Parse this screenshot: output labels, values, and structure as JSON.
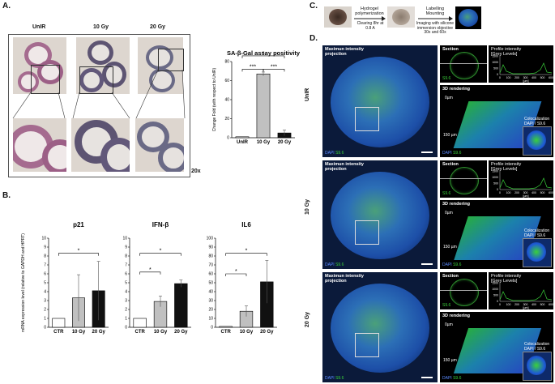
{
  "panels": {
    "A": {
      "letter": "A.",
      "labels": [
        "UnIR",
        "10 Gy",
        "20 Gy"
      ],
      "magnification": "20x"
    },
    "B": {
      "letter": "B."
    },
    "C": {
      "letter": "C.",
      "steps": [
        "Hydrogel polymerization",
        "Clearing 8hr at 0.8 A",
        "Labelling Mounting",
        "Imaging with silicone immersion objective 30x and 60x"
      ]
    },
    "D": {
      "letter": "D.",
      "rows": [
        "UnIR",
        "10 Gy",
        "20 Gy"
      ],
      "mip_title": "Maximun intensity projection",
      "section": "Section",
      "profile_title": "Profile intensity",
      "profile_unit": "[Grey Levels]",
      "profile_xunit": "[µm]",
      "rendering": "3D rendering",
      "coloc": "Colocalization DAPI / S9.6",
      "stain_dapi": "DAPI",
      "stain_s96": "S9.6",
      "depth0": "0µm",
      "depth150": "150 µm",
      "depth150b": "150µm"
    }
  },
  "colors": {
    "dapi": "#3d6fe0",
    "s96": "#3ad13a",
    "gray_bar": "#c0c0c0",
    "black_bar": "#111111"
  },
  "chart_data": [
    {
      "type": "bar",
      "title": "SA-β-Gal assay positivity",
      "ylabel": "Change Fold (with respect to UnIR)",
      "categories": [
        "UnIR",
        "10 Gy",
        "20 Gy"
      ],
      "values": [
        1,
        67,
        5
      ],
      "errors": [
        0,
        2,
        3
      ],
      "ylim": [
        0,
        80
      ],
      "yticks": [
        "0",
        "20",
        "40",
        "60",
        "80"
      ],
      "significance": [
        "***",
        "***",
        "*"
      ]
    },
    {
      "type": "bar",
      "title": "p21",
      "ylabel": "mRNA expression level (relative to GAPDH and HPRT)",
      "categories": [
        "CTR",
        "10 Gy",
        "20 Gy"
      ],
      "values": [
        1,
        3.3,
        4.1
      ],
      "errors": [
        0,
        2.6,
        3.3
      ],
      "ylim": [
        0,
        10
      ],
      "yticks": [
        "0",
        "1",
        "2",
        "3",
        "4",
        "5",
        "6",
        "7",
        "8",
        "9",
        "10"
      ],
      "significance": [
        "*"
      ]
    },
    {
      "type": "bar",
      "title": "IFN-β",
      "categories": [
        "CTR",
        "10 Gy",
        "20 Gy"
      ],
      "values": [
        1,
        2.9,
        4.9
      ],
      "errors": [
        0,
        0.6,
        0.4
      ],
      "ylim": [
        0,
        10
      ],
      "yticks": [
        "0",
        "1",
        "2",
        "3",
        "4",
        "5",
        "6",
        "7",
        "8",
        "9",
        "10"
      ],
      "significance": [
        "*",
        "*"
      ]
    },
    {
      "type": "bar",
      "title": "IL6",
      "categories": [
        "CTR",
        "10 Gy",
        "20 Gy"
      ],
      "values": [
        1,
        18,
        51
      ],
      "errors": [
        0,
        6,
        24
      ],
      "ylim": [
        0,
        100
      ],
      "yticks": [
        "0",
        "10",
        "20",
        "30",
        "40",
        "50",
        "60",
        "70",
        "80",
        "90",
        "100"
      ],
      "significance": [
        "*",
        "*"
      ]
    },
    {
      "type": "line",
      "title": "Profile intensity",
      "ylabel": "[Grey Levels]",
      "xlabel": "[µm]",
      "xticks": [
        "0",
        "100",
        "200",
        "300",
        "400",
        "500",
        "600"
      ],
      "yticks": [
        "0",
        "500",
        "1000",
        "1500"
      ]
    }
  ]
}
